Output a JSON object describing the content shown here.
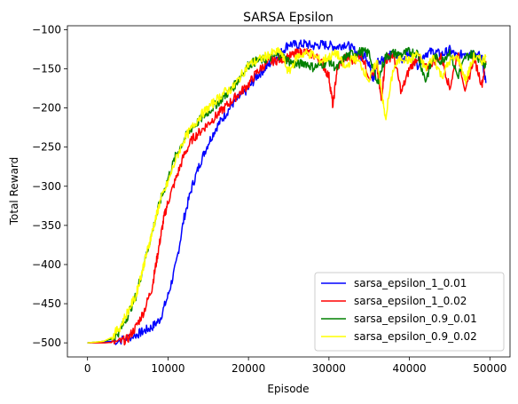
{
  "chart_data": {
    "type": "line",
    "title": "SARSA Epsilon",
    "xlabel": "Episode",
    "ylabel": "Total Reward",
    "xlim": [
      -2500,
      52500
    ],
    "ylim": [
      -518,
      -95
    ],
    "xticks": [
      0,
      10000,
      20000,
      30000,
      40000,
      50000
    ],
    "yticks": [
      -500,
      -450,
      -400,
      -350,
      -300,
      -250,
      -200,
      -150,
      -100
    ],
    "grid": false,
    "legend_position": "lower-right",
    "colors": {
      "sarsa_epsilon_1_0.01": "#0000ff",
      "sarsa_epsilon_1_0.02": "#ff0000",
      "sarsa_epsilon_0.9_0.01": "#008000",
      "sarsa_epsilon_0.9_0.02": "#ffff00"
    },
    "series": [
      {
        "name": "sarsa_epsilon_1_0.01",
        "x": [
          0,
          2000,
          4000,
          6000,
          7000,
          8000,
          9000,
          10000,
          11000,
          12000,
          13000,
          14000,
          15000,
          16000,
          17000,
          18000,
          19000,
          20000,
          21000,
          22000,
          23000,
          24000,
          25000,
          26000,
          27000,
          28000,
          29000,
          30000,
          31000,
          32000,
          33000,
          34000,
          34500,
          35000,
          35500,
          36000,
          37000,
          38000,
          39000,
          40000,
          41000,
          42000,
          43000,
          44000,
          45000,
          46000,
          47000,
          48000,
          49000,
          49500
        ],
        "y": [
          -500,
          -499,
          -497,
          -490,
          -485,
          -480,
          -470,
          -440,
          -400,
          -340,
          -300,
          -270,
          -245,
          -225,
          -210,
          -195,
          -185,
          -175,
          -160,
          -150,
          -140,
          -130,
          -118,
          -120,
          -118,
          -121,
          -119,
          -120,
          -122,
          -118,
          -125,
          -135,
          -130,
          -145,
          -165,
          -140,
          -135,
          -132,
          -138,
          -130,
          -145,
          -130,
          -128,
          -132,
          -126,
          -135,
          -128,
          -130,
          -135,
          -168
        ]
      },
      {
        "name": "sarsa_epsilon_1_0.02",
        "x": [
          0,
          2000,
          4000,
          5000,
          6000,
          7000,
          8000,
          8500,
          9000,
          9500,
          10000,
          11000,
          12000,
          13000,
          14000,
          15000,
          16000,
          17000,
          18000,
          19000,
          20000,
          21000,
          22000,
          23000,
          24000,
          25000,
          26000,
          27000,
          28000,
          29000,
          30000,
          30500,
          31000,
          32000,
          33000,
          34000,
          35000,
          36000,
          36500,
          37000,
          38000,
          39000,
          40000,
          41000,
          42000,
          43000,
          44000,
          45000,
          46000,
          47000,
          48000,
          49000,
          49500
        ],
        "y": [
          -500,
          -500,
          -499,
          -495,
          -480,
          -460,
          -430,
          -400,
          -370,
          -340,
          -320,
          -290,
          -260,
          -240,
          -230,
          -220,
          -210,
          -200,
          -190,
          -180,
          -170,
          -155,
          -145,
          -140,
          -138,
          -135,
          -130,
          -128,
          -132,
          -140,
          -160,
          -198,
          -150,
          -135,
          -140,
          -130,
          -160,
          -150,
          -190,
          -140,
          -132,
          -180,
          -150,
          -135,
          -150,
          -140,
          -135,
          -175,
          -130,
          -180,
          -135,
          -170,
          -140
        ]
      },
      {
        "name": "sarsa_epsilon_0.9_0.01",
        "x": [
          0,
          2000,
          3000,
          4000,
          5000,
          6000,
          7000,
          8000,
          9000,
          10000,
          11000,
          12000,
          13000,
          14000,
          15000,
          16000,
          17000,
          18000,
          19000,
          20000,
          21000,
          22000,
          23000,
          24000,
          25000,
          26000,
          27000,
          28000,
          29000,
          30000,
          31000,
          32000,
          33000,
          34000,
          35000,
          36000,
          37000,
          38000,
          39000,
          40000,
          41000,
          42000,
          43000,
          44000,
          45000,
          46000,
          47000,
          48000,
          49000,
          49500
        ],
        "y": [
          -500,
          -498,
          -495,
          -485,
          -465,
          -440,
          -400,
          -360,
          -320,
          -290,
          -260,
          -240,
          -225,
          -215,
          -205,
          -195,
          -185,
          -175,
          -160,
          -145,
          -140,
          -138,
          -135,
          -132,
          -140,
          -145,
          -142,
          -148,
          -145,
          -140,
          -150,
          -135,
          -130,
          -128,
          -130,
          -170,
          -135,
          -130,
          -132,
          -128,
          -130,
          -165,
          -135,
          -140,
          -128,
          -160,
          -135,
          -130,
          -140,
          -145
        ]
      },
      {
        "name": "sarsa_epsilon_0.9_0.02",
        "x": [
          0,
          2000,
          3000,
          4000,
          5000,
          6000,
          6500,
          7000,
          7500,
          8000,
          8500,
          9000,
          10000,
          11000,
          12000,
          13000,
          14000,
          15000,
          16000,
          17000,
          18000,
          19000,
          20000,
          21000,
          22000,
          23000,
          24000,
          25000,
          26000,
          27000,
          28000,
          29000,
          30000,
          31000,
          32000,
          33000,
          34000,
          35000,
          36000,
          36500,
          37000,
          38000,
          39000,
          40000,
          41000,
          42000,
          43000,
          44000,
          45000,
          46000,
          47000,
          48000,
          49000,
          49500
        ],
        "y": [
          -500,
          -498,
          -493,
          -480,
          -460,
          -440,
          -420,
          -400,
          -380,
          -360,
          -340,
          -320,
          -295,
          -265,
          -240,
          -225,
          -210,
          -200,
          -190,
          -180,
          -175,
          -160,
          -145,
          -140,
          -135,
          -130,
          -128,
          -155,
          -135,
          -130,
          -132,
          -140,
          -135,
          -130,
          -150,
          -135,
          -145,
          -165,
          -140,
          -175,
          -215,
          -150,
          -135,
          -140,
          -130,
          -150,
          -135,
          -160,
          -140,
          -135,
          -165,
          -135,
          -140,
          -135
        ]
      }
    ]
  }
}
